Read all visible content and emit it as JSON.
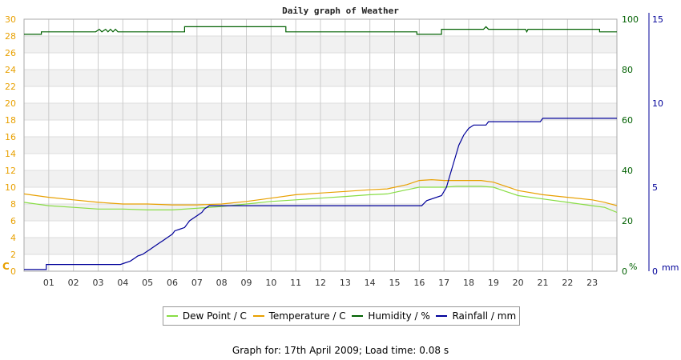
{
  "chart_data": {
    "type": "line",
    "title": "Daily graph of Weather",
    "x_ticks": [
      "01",
      "02",
      "03",
      "04",
      "05",
      "06",
      "07",
      "08",
      "09",
      "10",
      "11",
      "12",
      "13",
      "14",
      "15",
      "16",
      "17",
      "18",
      "19",
      "20",
      "21",
      "22",
      "23"
    ],
    "xlim": [
      0,
      24
    ],
    "axes": {
      "temp": {
        "unit": "C",
        "ylim": [
          0,
          30
        ],
        "ticks": [
          0,
          2,
          4,
          6,
          8,
          10,
          12,
          14,
          16,
          18,
          20,
          22,
          24,
          26,
          28,
          30
        ],
        "color": "#e8a000"
      },
      "humidity": {
        "unit": "%",
        "ylim": [
          0,
          100
        ],
        "ticks": [
          0,
          20,
          40,
          60,
          80,
          100
        ],
        "color": "#006000"
      },
      "rain": {
        "unit": "mm",
        "ylim": [
          0,
          15
        ],
        "ticks": [
          0,
          5,
          10,
          15
        ],
        "color": "#000099"
      }
    },
    "series": [
      {
        "name": "Dew Point / C",
        "axis": "temp",
        "color": "#88dd44",
        "x": [
          0,
          1,
          2,
          3,
          4,
          5,
          6,
          7,
          8,
          9,
          10,
          11,
          12,
          13,
          14,
          14.7,
          15.5,
          16,
          16.5,
          17,
          17.5,
          18,
          18.5,
          19,
          19.5,
          20,
          21,
          22,
          23,
          23.5,
          24
        ],
        "y": [
          8.2,
          7.8,
          7.6,
          7.4,
          7.4,
          7.3,
          7.3,
          7.5,
          7.7,
          8.0,
          8.3,
          8.5,
          8.7,
          8.9,
          9.1,
          9.2,
          9.7,
          10.0,
          10.0,
          10.0,
          10.1,
          10.1,
          10.1,
          10.0,
          9.5,
          9.0,
          8.6,
          8.2,
          7.8,
          7.6,
          7.0
        ]
      },
      {
        "name": "Temperature / C",
        "axis": "temp",
        "color": "#e8a000",
        "x": [
          0,
          1,
          2,
          3,
          4,
          5,
          6,
          7,
          8,
          9,
          10,
          11,
          12,
          13,
          14,
          14.7,
          15.5,
          16,
          16.5,
          17,
          17.5,
          18,
          18.5,
          19,
          19.5,
          20,
          21,
          22,
          23,
          23.5,
          24
        ],
        "y": [
          9.2,
          8.8,
          8.5,
          8.2,
          8.0,
          8.0,
          7.9,
          7.9,
          8.0,
          8.3,
          8.7,
          9.1,
          9.3,
          9.5,
          9.7,
          9.8,
          10.3,
          10.8,
          10.9,
          10.8,
          10.8,
          10.8,
          10.8,
          10.6,
          10.1,
          9.6,
          9.1,
          8.8,
          8.5,
          8.2,
          7.8
        ]
      },
      {
        "name": "Humidity / %",
        "axis": "humidity",
        "color": "#006000",
        "x": [
          0,
          0.7,
          0.7,
          0.95,
          0.95,
          2.9,
          3.05,
          3.15,
          3.3,
          3.4,
          3.5,
          3.6,
          3.7,
          3.8,
          6.5,
          6.5,
          10.6,
          10.6,
          15.9,
          15.9,
          16.9,
          16.9,
          18.6,
          18.7,
          18.8,
          20.3,
          20.35,
          20.4,
          23.3,
          23.3,
          24
        ],
        "y": [
          94,
          94,
          95,
          95,
          95,
          95,
          96,
          95,
          96,
          95,
          96,
          95,
          96,
          95,
          95,
          97,
          97,
          95,
          95,
          94,
          94,
          96,
          96,
          97,
          96,
          96,
          95,
          96,
          96,
          95,
          95
        ]
      },
      {
        "name": "Rainfall / mm",
        "axis": "rain",
        "color": "#000099",
        "x": [
          0,
          0.9,
          0.9,
          3.7,
          3.9,
          4.1,
          4.3,
          4.5,
          4.6,
          4.8,
          4.9,
          5.0,
          5.1,
          5.2,
          5.3,
          5.4,
          5.5,
          5.6,
          5.7,
          5.8,
          5.9,
          6.0,
          6.1,
          6.3,
          6.5,
          6.6,
          6.7,
          6.8,
          6.9,
          7.0,
          7.1,
          7.2,
          7.25,
          7.3,
          7.4,
          7.5,
          16.1,
          16.3,
          16.9,
          17.1,
          17.2,
          17.3,
          17.4,
          17.5,
          17.6,
          17.7,
          17.8,
          17.9,
          18.0,
          18.2,
          18.7,
          18.8,
          20.9,
          21.0,
          24
        ],
        "y": [
          0.1,
          0.1,
          0.4,
          0.4,
          0.4,
          0.5,
          0.6,
          0.8,
          0.9,
          1.0,
          1.1,
          1.2,
          1.3,
          1.4,
          1.5,
          1.6,
          1.7,
          1.8,
          1.9,
          2.0,
          2.1,
          2.2,
          2.4,
          2.5,
          2.6,
          2.8,
          3.0,
          3.1,
          3.2,
          3.3,
          3.4,
          3.5,
          3.6,
          3.7,
          3.8,
          3.9,
          3.9,
          4.2,
          4.5,
          5.0,
          5.5,
          6.0,
          6.5,
          7.0,
          7.5,
          7.8,
          8.1,
          8.3,
          8.5,
          8.7,
          8.7,
          8.9,
          8.9,
          9.1,
          9.1
        ]
      }
    ],
    "grid": true
  },
  "legend": {
    "dew": "Dew Point / C",
    "temp": "Temperature / C",
    "hum": "Humidity / %",
    "rain": "Rainfall / mm"
  },
  "footer": "Graph for: 17th April 2009; Load time: 0.08 s"
}
